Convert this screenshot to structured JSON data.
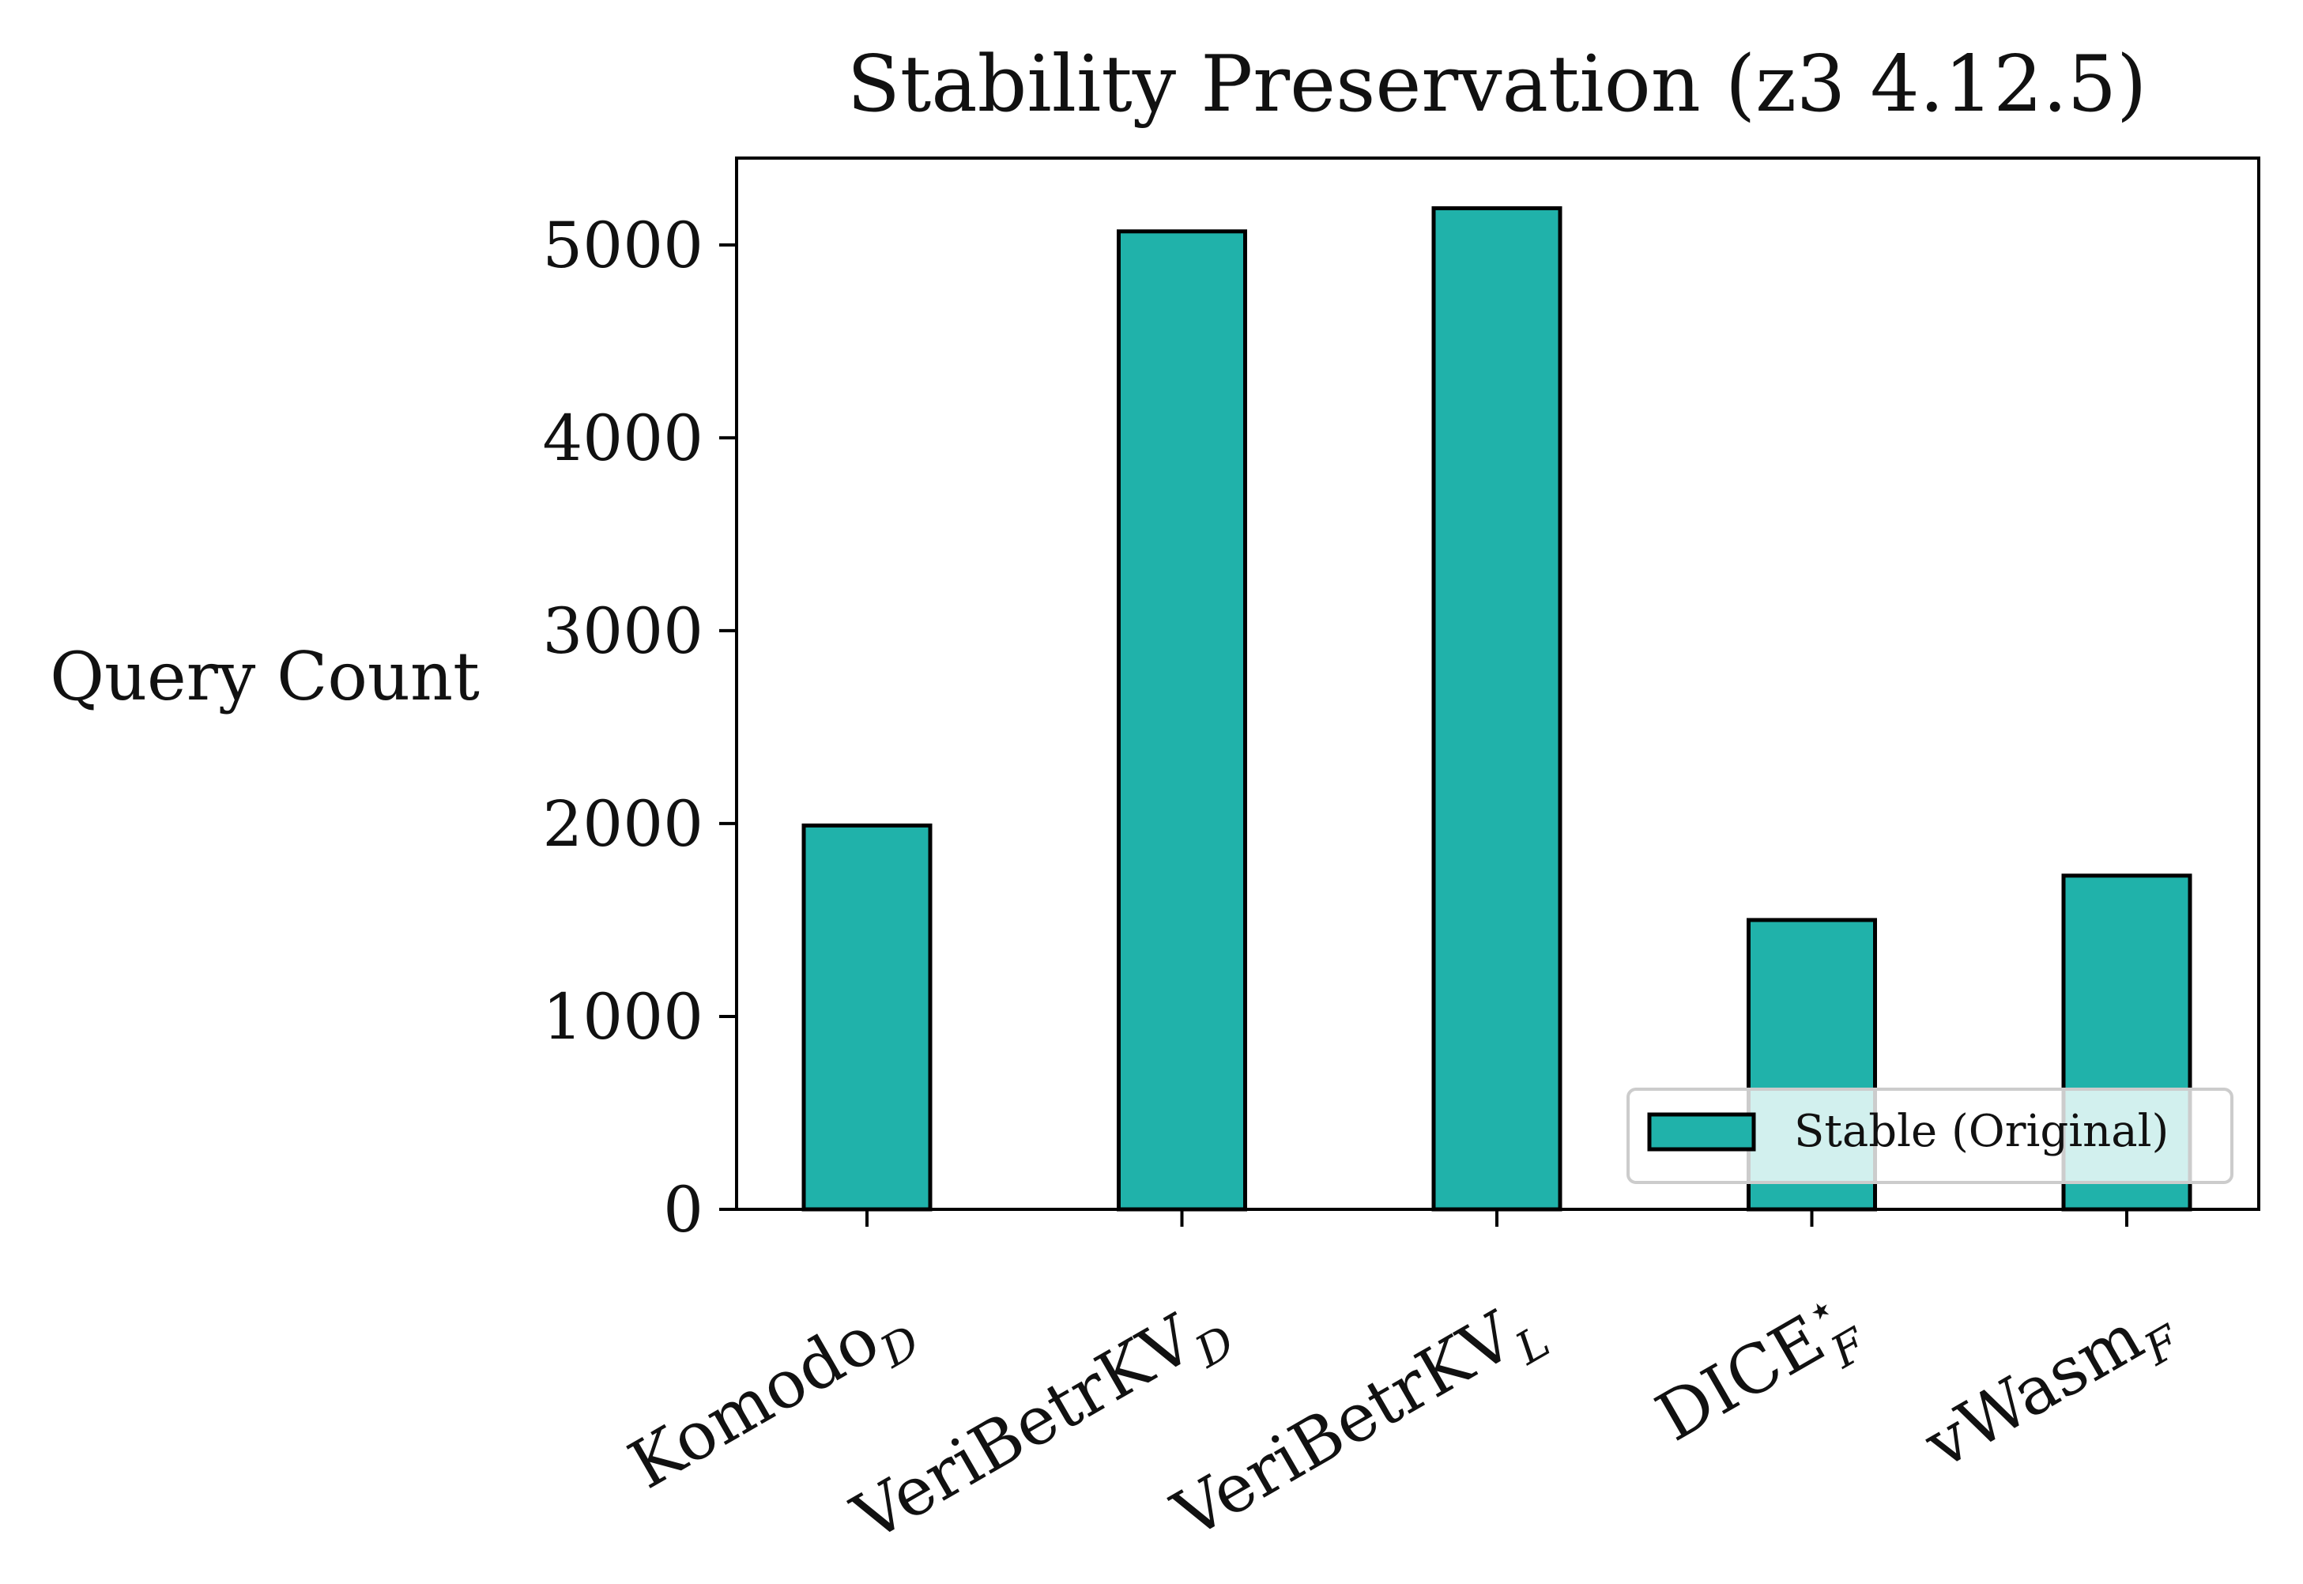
{
  "chart_data": {
    "type": "bar",
    "title": "Stability Preservation (z3 4.12.5)",
    "xlabel": "",
    "ylabel": "Query Count",
    "categories": [
      {
        "base": "Komodo",
        "sub": "D",
        "sup": ""
      },
      {
        "base": "VeriBetrKV",
        "sub": "D",
        "sup": ""
      },
      {
        "base": "VeriBetrKV",
        "sub": "L",
        "sup": ""
      },
      {
        "base": "DICE",
        "sub": "F",
        "sup": "⋆"
      },
      {
        "base": "vWasm",
        "sub": "F",
        "sup": ""
      }
    ],
    "series": [
      {
        "name": "Stable (Original)",
        "values": [
          1990,
          5070,
          5190,
          1500,
          1730
        ],
        "color": "#20b2aa"
      }
    ],
    "yticks": [
      0,
      1000,
      2000,
      3000,
      4000,
      5000
    ],
    "ylim": [
      0,
      5450
    ],
    "grid": false,
    "legend_position": "lower-right",
    "edge_color": "#000000"
  }
}
